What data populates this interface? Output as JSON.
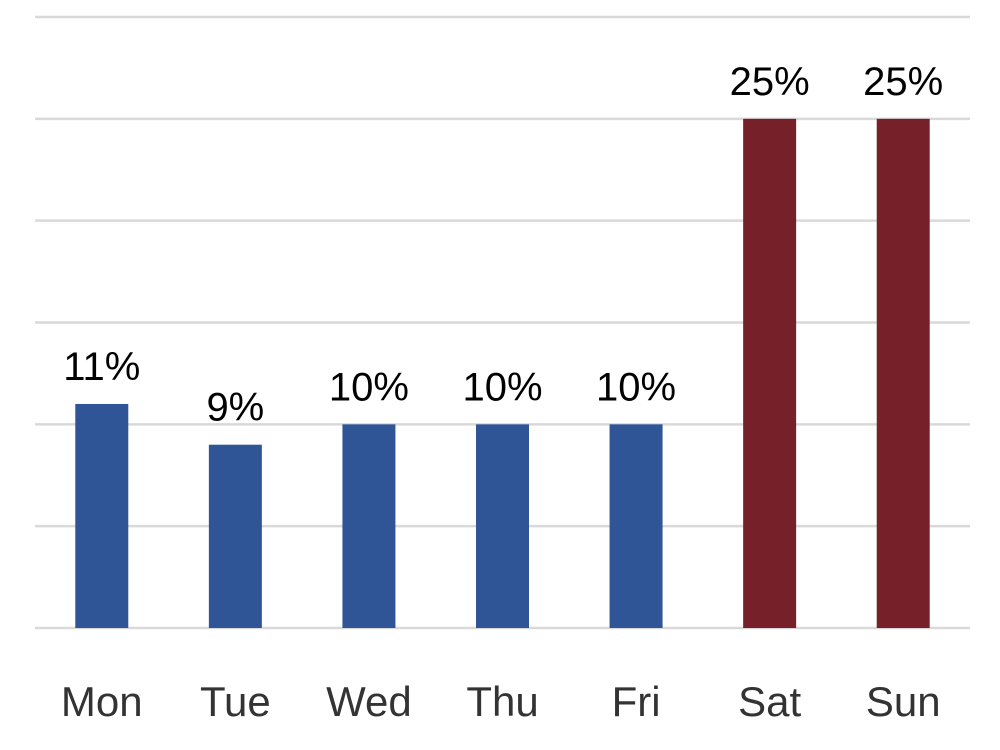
{
  "chart_data": {
    "type": "bar",
    "categories": [
      "Mon",
      "Tue",
      "Wed",
      "Thu",
      "Fri",
      "Sat",
      "Sun"
    ],
    "values": [
      11,
      9,
      10,
      10,
      10,
      25,
      25
    ],
    "value_labels": [
      "11%",
      "9%",
      "10%",
      "10%",
      "10%",
      "25%",
      "25%"
    ],
    "unit": "%",
    "title": "",
    "xlabel": "",
    "ylabel": "",
    "ylim": [
      0,
      30
    ],
    "gridlines": [
      0,
      5,
      10,
      15,
      20,
      25,
      30
    ],
    "grid": true,
    "legend": "none",
    "bar_colors": [
      "#2f5597",
      "#2f5597",
      "#2f5597",
      "#2f5597",
      "#2f5597",
      "#76202a",
      "#76202a"
    ]
  }
}
